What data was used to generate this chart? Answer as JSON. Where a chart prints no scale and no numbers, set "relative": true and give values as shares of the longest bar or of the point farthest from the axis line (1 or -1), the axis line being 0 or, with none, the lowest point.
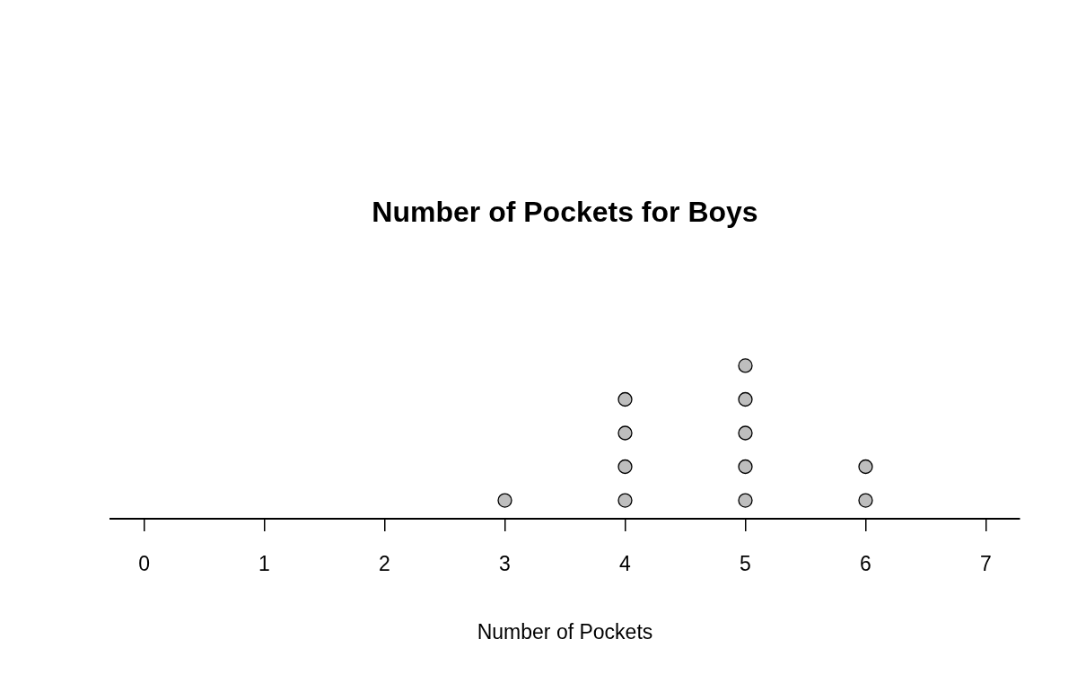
{
  "chart_data": {
    "type": "scatter",
    "title": "Number of Pockets for Boys",
    "xlabel": "Number of Pockets",
    "x": [
      3,
      4,
      4,
      4,
      4,
      5,
      5,
      5,
      5,
      5,
      6,
      6
    ],
    "values": [
      0.12,
      0.12,
      0.34,
      0.56,
      0.78,
      0.12,
      0.34,
      0.56,
      0.78,
      1,
      0.12,
      0.34
    ],
    "relative": true,
    "color": "#bebebe",
    "marker": "circle",
    "xlim": [
      -0.28,
      7.28
    ],
    "xticks": [
      0,
      1,
      2,
      3,
      4,
      5,
      6,
      7
    ],
    "tick_labels": "x"
  }
}
